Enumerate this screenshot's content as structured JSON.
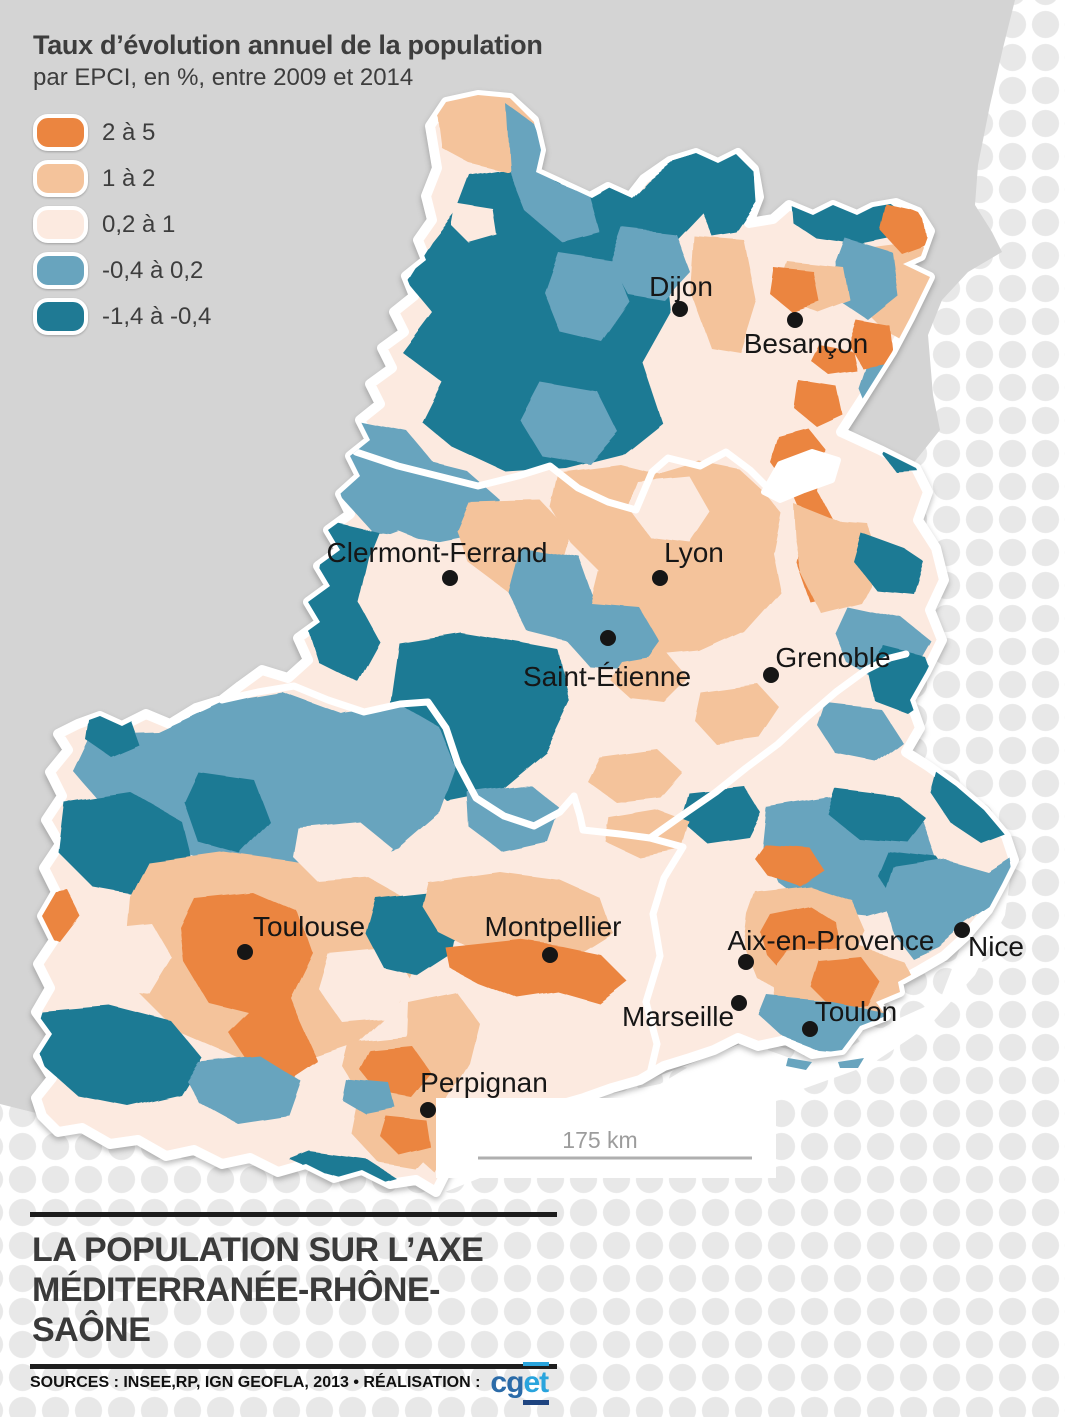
{
  "header": {
    "title": "Taux d’évolution annuel de la population",
    "subtitle": "par EPCI, en %, entre 2009 et 2014"
  },
  "legend": {
    "items": [
      {
        "label": "2 à 5",
        "color": "#EB8540"
      },
      {
        "label": "1 à 2",
        "color": "#F4C39B"
      },
      {
        "label": "0,2 à 1",
        "color": "#FCEAE0"
      },
      {
        "label": "-0,4 à 0,2",
        "color": "#68A4BE"
      },
      {
        "label": "-1,4 à -0,4",
        "color": "#1F7A94"
      }
    ]
  },
  "cities": [
    {
      "name": "Dijon",
      "dot": [
        680,
        309
      ],
      "label": [
        681,
        296
      ]
    },
    {
      "name": "Besançon",
      "dot": [
        795,
        320
      ],
      "label": [
        806,
        353
      ]
    },
    {
      "name": "Clermont-Ferrand",
      "dot": [
        450,
        578
      ],
      "label": [
        437,
        562
      ]
    },
    {
      "name": "Lyon",
      "dot": [
        660,
        578
      ],
      "label": [
        694,
        562
      ]
    },
    {
      "name": "Saint-Étienne",
      "dot": [
        608,
        638
      ],
      "label": [
        607,
        686
      ]
    },
    {
      "name": "Grenoble",
      "dot": [
        771,
        675
      ],
      "label": [
        833,
        667
      ]
    },
    {
      "name": "Toulouse",
      "dot": [
        245,
        952
      ],
      "label": [
        309,
        936
      ]
    },
    {
      "name": "Montpellier",
      "dot": [
        550,
        955
      ],
      "label": [
        553,
        936
      ]
    },
    {
      "name": "Aix-en-Provence",
      "dot": [
        746,
        962
      ],
      "label": [
        831,
        950
      ]
    },
    {
      "name": "Nice",
      "dot": [
        962,
        930
      ],
      "label": [
        996,
        956
      ]
    },
    {
      "name": "Marseille",
      "dot": [
        739,
        1003
      ],
      "label": [
        678,
        1026
      ]
    },
    {
      "name": "Toulon",
      "dot": [
        810,
        1029
      ],
      "label": [
        856,
        1021
      ]
    },
    {
      "name": "Perpignan",
      "dot": [
        428,
        1110
      ],
      "label": [
        484,
        1092
      ]
    }
  ],
  "scale_bar": {
    "label": "175 km"
  },
  "footer": {
    "title_line1": "LA POPULATION SUR L’AXE",
    "title_line2": "MÉDITERRANÉE-RHÔNE-SAÔNE",
    "sources_text": "SOURCES : INSEE,RP, IGN GEOFLA, 2013 • RÉALISATION :",
    "logo_cg": "cg",
    "logo_et": "et"
  },
  "colors": {
    "dot_pattern": "#E8E8E8",
    "landmass": "#D4D4D4",
    "map_base": "#FCEAE0",
    "ink": "#3D3D3D",
    "footer_ink": "#3A3A3A",
    "rule": "#1D1D1D",
    "scale_ink": "#9C9C9C",
    "scale_line": "#AFAFAF",
    "logo_cg": "#2B6BA8",
    "logo_et": "#29A4DD",
    "logo_navy": "#1E4480"
  }
}
